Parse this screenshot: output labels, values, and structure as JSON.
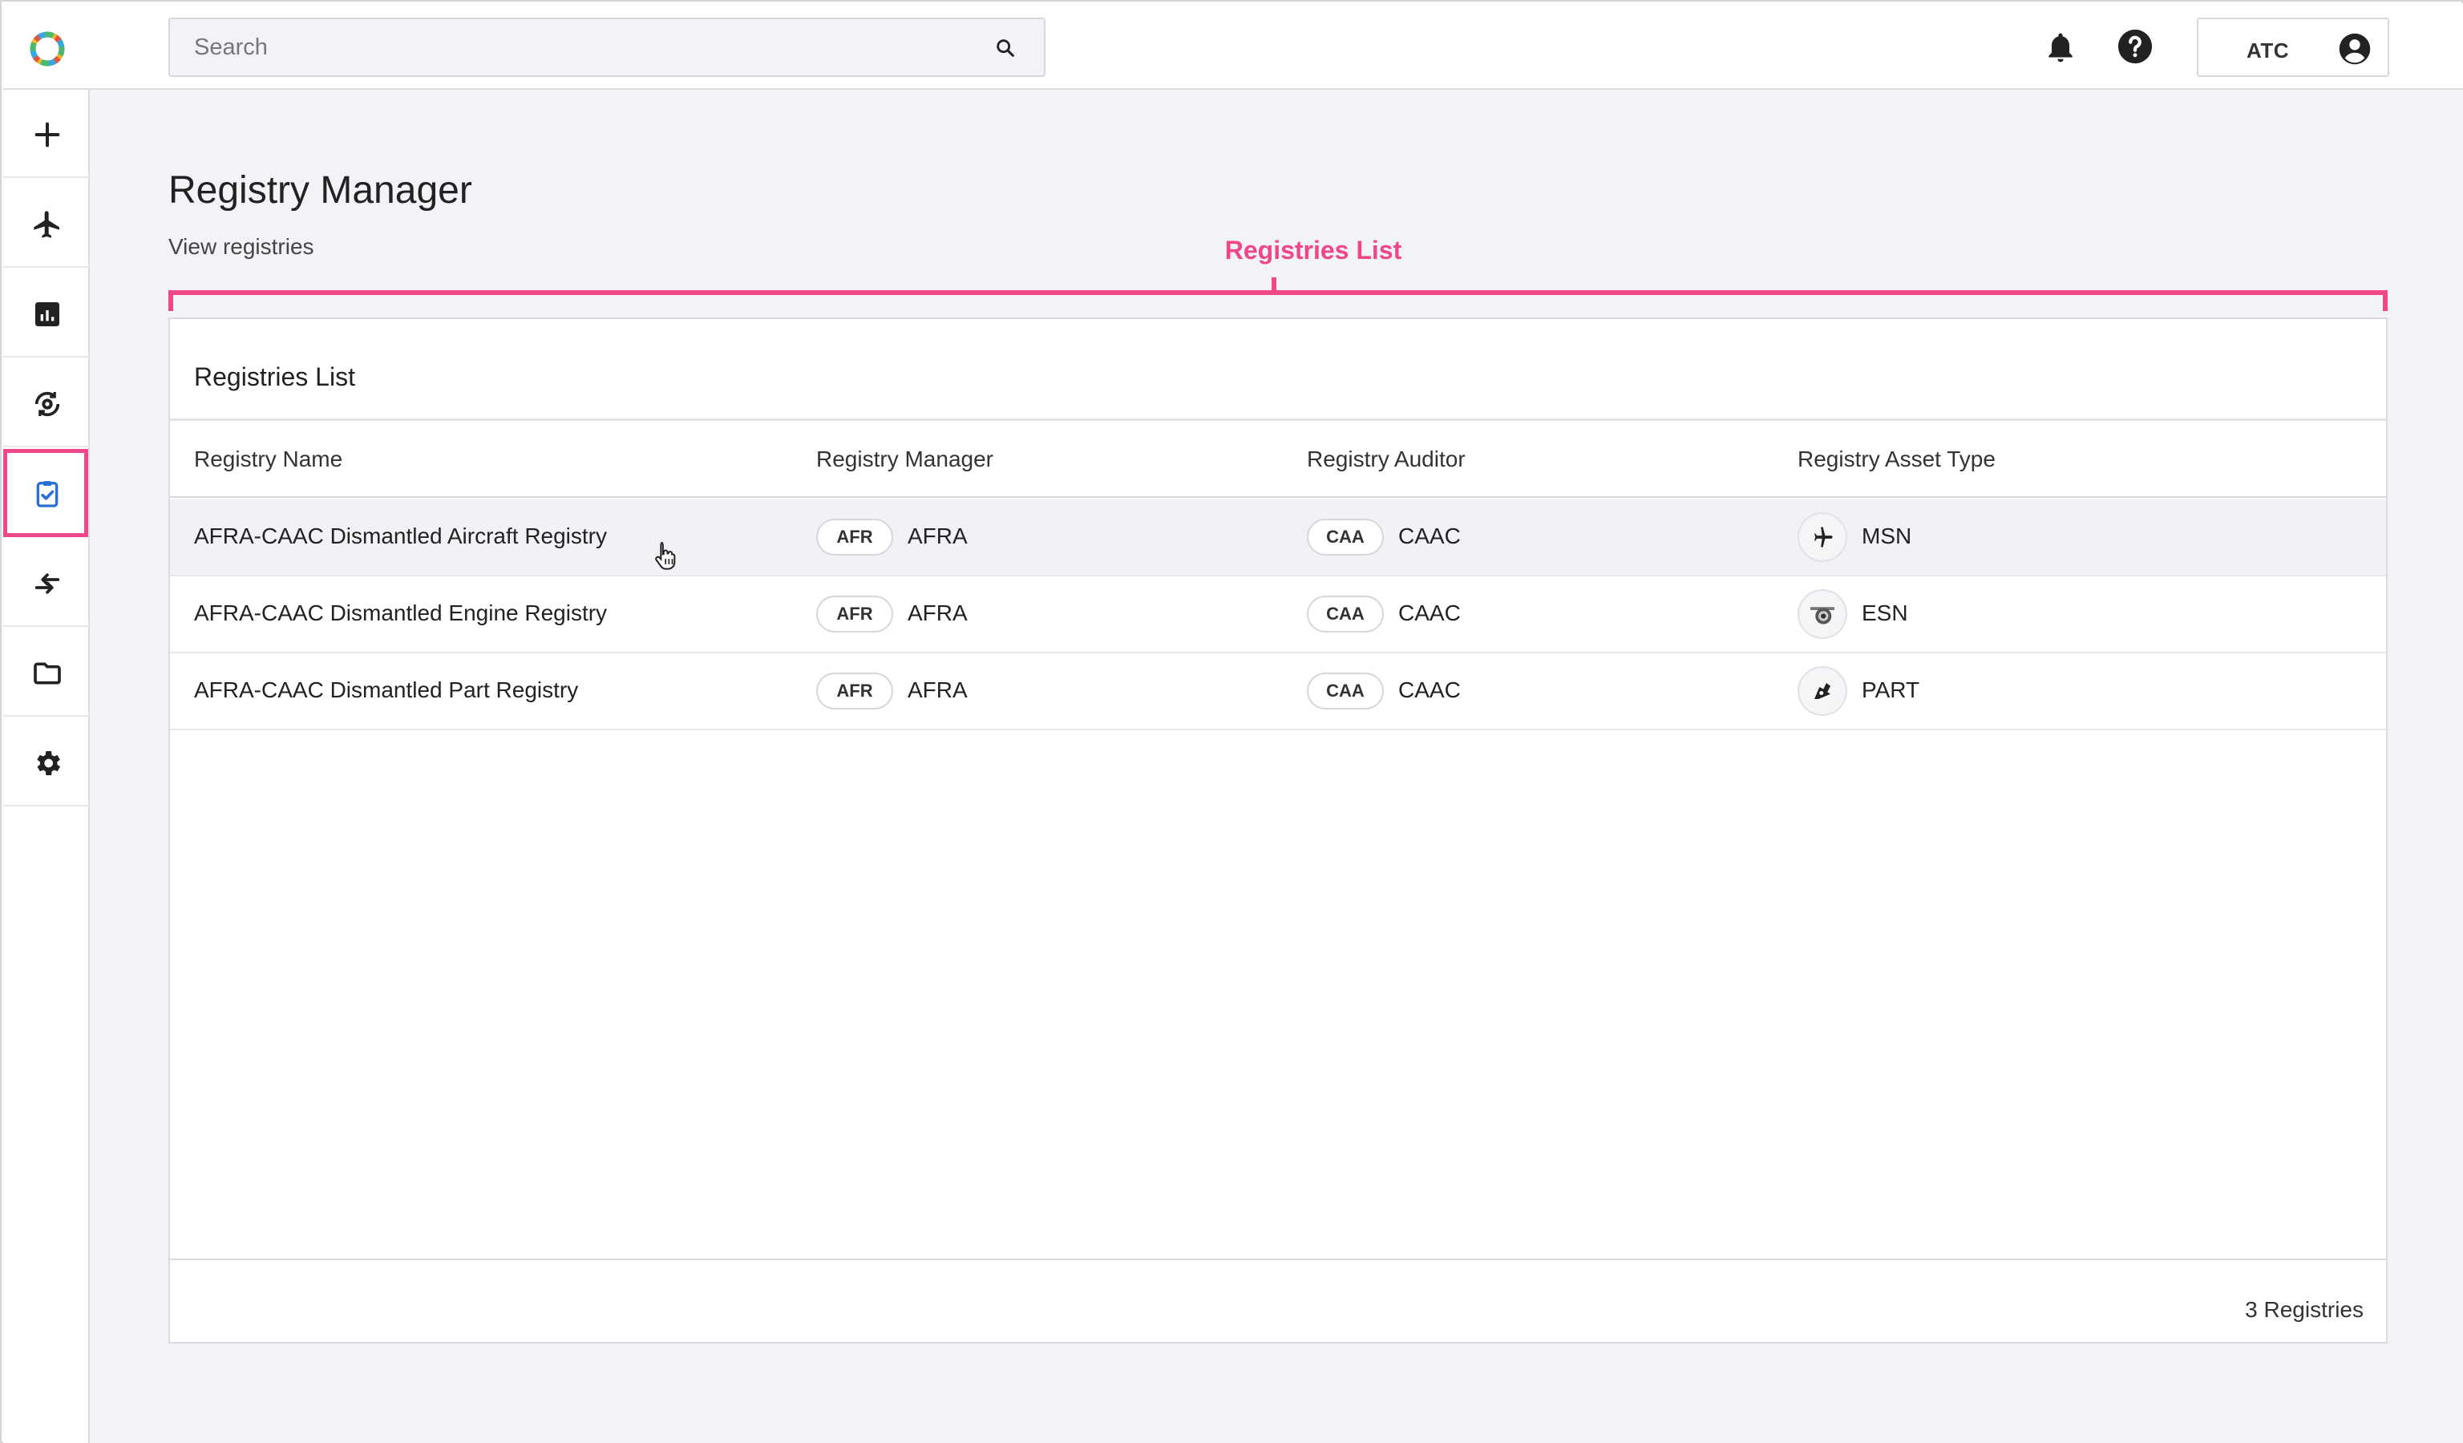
{
  "header": {
    "search_placeholder": "Search",
    "user_label": "ATC"
  },
  "sidebar": {
    "items": [
      {
        "icon": "plus-icon"
      },
      {
        "icon": "airplane-icon"
      },
      {
        "icon": "chart-icon"
      },
      {
        "icon": "engine-sync-icon"
      },
      {
        "icon": "clipboard-check-icon",
        "active": true
      },
      {
        "icon": "transfer-arrows-icon"
      },
      {
        "icon": "folder-icon"
      },
      {
        "icon": "gear-icon"
      }
    ]
  },
  "page": {
    "title": "Registry Manager",
    "subtitle": "View registries"
  },
  "annotation": {
    "label": "Registries List",
    "color": "#f0468a"
  },
  "registries": {
    "card_title": "Registries List",
    "columns": [
      "Registry Name",
      "Registry Manager",
      "Registry Auditor",
      "Registry Asset Type"
    ],
    "rows": [
      {
        "name": "AFRA-CAAC Dismantled Aircraft Registry",
        "manager_badge": "AFR",
        "manager": "AFRA",
        "auditor_badge": "CAA",
        "auditor": "CAAC",
        "asset_icon": "airplane-icon",
        "asset_type": "MSN"
      },
      {
        "name": "AFRA-CAAC Dismantled Engine Registry",
        "manager_badge": "AFR",
        "manager": "AFRA",
        "auditor_badge": "CAA",
        "auditor": "CAAC",
        "asset_icon": "engine-icon",
        "asset_type": "ESN"
      },
      {
        "name": "AFRA-CAAC Dismantled Part Registry",
        "manager_badge": "AFR",
        "manager": "AFRA",
        "auditor_badge": "CAA",
        "auditor": "CAAC",
        "asset_icon": "part-icon",
        "asset_type": "PART"
      }
    ],
    "footer_count": "3 Registries"
  }
}
